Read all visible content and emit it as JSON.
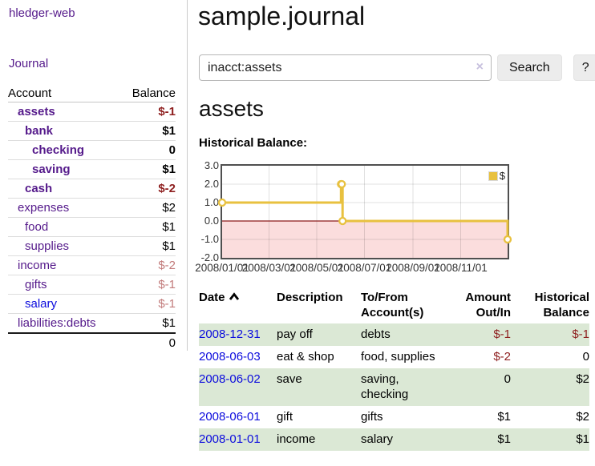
{
  "app": {
    "title": "hledger-web"
  },
  "sidebar": {
    "journal_link": "Journal",
    "accounts": {
      "headers": {
        "account": "Account",
        "balance": "Balance"
      },
      "rows": [
        {
          "name": "assets",
          "balance": "$-1",
          "level": 1,
          "bold": true,
          "link_color": "purple"
        },
        {
          "name": "bank",
          "balance": "$1",
          "level": 2,
          "bold": true,
          "link_color": "purple"
        },
        {
          "name": "checking",
          "balance": "0",
          "level": 3,
          "bold": true,
          "link_color": "purple"
        },
        {
          "name": "saving",
          "balance": "$1",
          "level": 3,
          "bold": true,
          "link_color": "purple"
        },
        {
          "name": "cash",
          "balance": "$-2",
          "level": 2,
          "bold": true,
          "link_color": "purple"
        },
        {
          "name": "expenses",
          "balance": "$2",
          "level": 1,
          "bold": false,
          "link_color": "purple"
        },
        {
          "name": "food",
          "balance": "$1",
          "level": 2,
          "bold": false,
          "link_color": "purple"
        },
        {
          "name": "supplies",
          "balance": "$1",
          "level": 2,
          "bold": false,
          "link_color": "purple"
        },
        {
          "name": "income",
          "balance": "$-2",
          "level": 1,
          "bold": false,
          "link_color": "purple"
        },
        {
          "name": "gifts",
          "balance": "$-1",
          "level": 2,
          "bold": false,
          "link_color": "purple"
        },
        {
          "name": "salary",
          "balance": "$-1",
          "level": 2,
          "bold": false,
          "link_color": "blue"
        },
        {
          "name": "liabilities:debts",
          "balance": "$1",
          "level": 1,
          "bold": false,
          "link_color": "purple"
        }
      ],
      "total": "0"
    }
  },
  "main": {
    "title": "sample.journal",
    "search": {
      "value": "inacct:assets",
      "clear_label": "×",
      "button": "Search",
      "help": "?"
    },
    "heading": "assets",
    "chart_title": "Historical Balance:"
  },
  "chart_data": {
    "type": "line",
    "step": true,
    "series": [
      {
        "name": "$",
        "color": "#e8c13f",
        "points": [
          [
            "2008-01-01",
            1
          ],
          [
            "2008-06-01",
            2
          ],
          [
            "2008-06-02",
            2
          ],
          [
            "2008-06-03",
            0
          ],
          [
            "2008-12-31",
            -1
          ]
        ]
      }
    ],
    "x_range": [
      "2008-01-01",
      "2008-12-31"
    ],
    "y_range": [
      -2,
      3
    ],
    "y_ticks": [
      "3.0",
      "2.0",
      "1.0",
      "0.0",
      "-1.0",
      "-2.0"
    ],
    "x_ticks": [
      {
        "date": "2008-01-01",
        "label": "2008/01/01"
      },
      {
        "date": "2008-03-01",
        "label": "2008/03/01"
      },
      {
        "date": "2008-05-01",
        "label": "2008/05/01"
      },
      {
        "date": "2008-07-01",
        "label": "2008/07/01"
      },
      {
        "date": "2008-09-01",
        "label": "2008/09/01"
      },
      {
        "date": "2008-11-01",
        "label": "2008/11/01"
      }
    ],
    "legend": {
      "label": "$",
      "position": "top-right"
    },
    "grid": true,
    "negative_area_color": "#fbdddd",
    "zero_line_color": "#8b1a1a"
  },
  "register": {
    "headers": {
      "date": "Date",
      "sort_icon": "chevron-up",
      "description": "Description",
      "accounts": [
        "To/From",
        "Account(s)"
      ],
      "amount": [
        "Amount",
        "Out/In"
      ],
      "balance": [
        "Historical",
        "Balance"
      ]
    },
    "rows": [
      {
        "date": "2008-12-31",
        "description": "pay off",
        "accounts": "debts",
        "amount": "$-1",
        "balance": "$-1"
      },
      {
        "date": "2008-06-03",
        "description": "eat & shop",
        "accounts": "food, supplies",
        "amount": "$-2",
        "balance": "0"
      },
      {
        "date": "2008-06-02",
        "description": "save",
        "accounts": "saving, checking",
        "amount": "0",
        "balance": "$2"
      },
      {
        "date": "2008-06-01",
        "description": "gift",
        "accounts": "gifts",
        "amount": "$1",
        "balance": "$2"
      },
      {
        "date": "2008-01-01",
        "description": "income",
        "accounts": "salary",
        "amount": "$1",
        "balance": "$1"
      }
    ]
  },
  "colors": {
    "link_purple": "#551a8b",
    "link_blue": "#0c0cdd",
    "negative_strong": "#8e1f1f",
    "negative_faded": "#c27b7b",
    "row_green": "#dbe8d5",
    "series_gold": "#e8c13f"
  }
}
